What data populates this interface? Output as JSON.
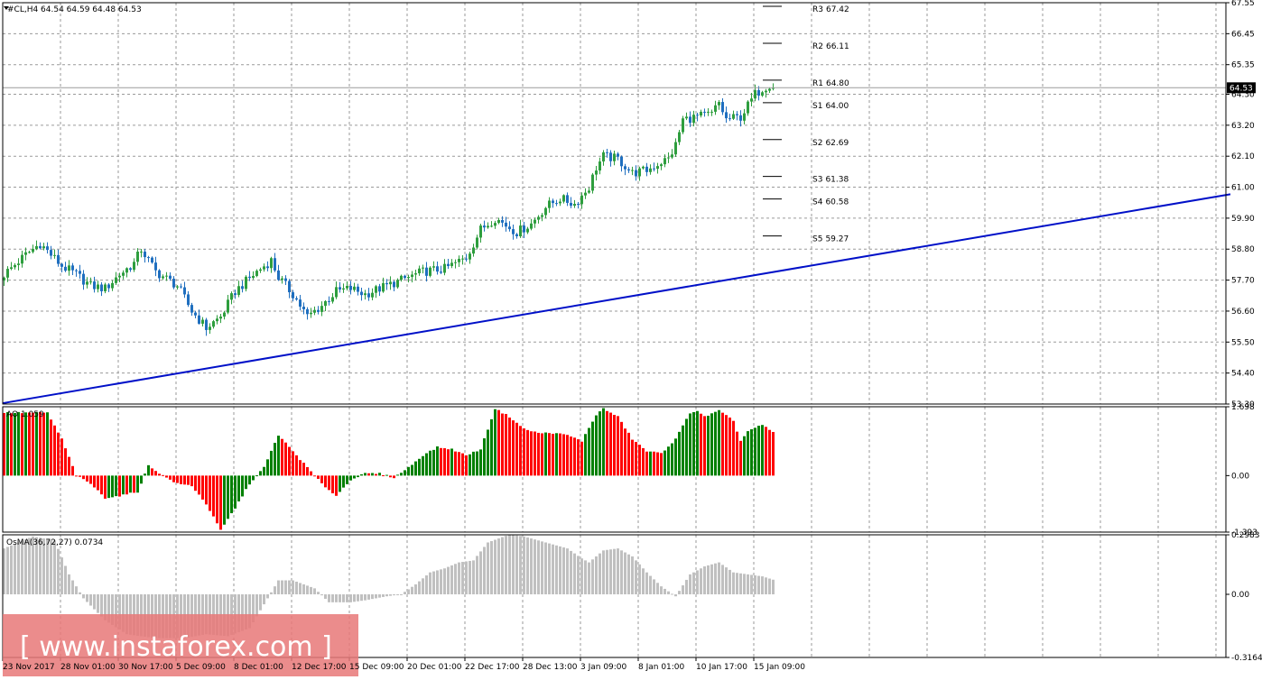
{
  "chart_data": [
    {
      "type": "candlestick",
      "title": "#CL,H4  64.54 64.59 64.48 64.53",
      "ylim": [
        53.3,
        67.55
      ],
      "y_ticks": [
        "67.55",
        "66.45",
        "65.35",
        "64.30",
        "63.20",
        "62.10",
        "61.00",
        "59.90",
        "58.80",
        "57.70",
        "56.60",
        "55.50",
        "54.40",
        "53.30"
      ],
      "current_price": "64.53",
      "up_color": "#2e9e3e",
      "down_color": "#1f6fbf",
      "x_ticks": [
        "23 Nov 2017",
        "28 Nov 01:00",
        "30 Nov 17:00",
        "5 Dec 09:00",
        "8 Dec 01:00",
        "12 Dec 17:00",
        "15 Dec 09:00",
        "20 Dec 01:00",
        "22 Dec 17:00",
        "28 Dec 13:00",
        "3 Jan 09:00",
        "8 Jan 01:00",
        "10 Jan 17:00",
        "15 Jan 09:00"
      ],
      "close_path": [
        [
          0,
          57.9
        ],
        [
          6,
          58.6
        ],
        [
          10,
          59.0
        ],
        [
          16,
          58.2
        ],
        [
          20,
          57.9
        ],
        [
          24,
          57.5
        ],
        [
          28,
          57.4
        ],
        [
          32,
          57.9
        ],
        [
          36,
          58.3
        ],
        [
          38,
          58.8
        ],
        [
          42,
          58.0
        ],
        [
          48,
          57.5
        ],
        [
          52,
          56.6
        ],
        [
          56,
          56.0
        ],
        [
          60,
          56.4
        ],
        [
          64,
          57.3
        ],
        [
          70,
          58.0
        ],
        [
          74,
          58.4
        ],
        [
          76,
          57.8
        ],
        [
          80,
          57.2
        ],
        [
          84,
          56.4
        ],
        [
          88,
          56.8
        ],
        [
          92,
          57.3
        ],
        [
          96,
          57.4
        ],
        [
          100,
          57.2
        ],
        [
          104,
          57.4
        ],
        [
          110,
          57.7
        ],
        [
          116,
          58.0
        ],
        [
          122,
          58.1
        ],
        [
          128,
          58.5
        ],
        [
          132,
          59.5
        ],
        [
          136,
          59.9
        ],
        [
          142,
          59.4
        ],
        [
          146,
          59.7
        ],
        [
          150,
          60.3
        ],
        [
          154,
          60.6
        ],
        [
          158,
          60.4
        ],
        [
          162,
          61.0
        ],
        [
          164,
          61.7
        ],
        [
          166,
          62.1
        ],
        [
          170,
          62.0
        ],
        [
          174,
          61.5
        ],
        [
          178,
          61.6
        ],
        [
          182,
          61.9
        ],
        [
          184,
          62.0
        ],
        [
          186,
          62.5
        ],
        [
          188,
          63.4
        ],
        [
          192,
          63.5
        ],
        [
          196,
          63.6
        ],
        [
          198,
          64.0
        ],
        [
          200,
          63.4
        ],
        [
          204,
          63.5
        ],
        [
          208,
          64.3
        ],
        [
          210,
          64.5
        ],
        [
          212,
          64.65
        ],
        [
          213,
          64.53
        ]
      ],
      "trendline": {
        "x": [
          0,
          340
        ],
        "y": [
          53.33,
          60.75
        ],
        "color": "#0010c8"
      },
      "pivot_levels": [
        {
          "label": "R3",
          "value": "67.42"
        },
        {
          "label": "R2",
          "value": "66.11"
        },
        {
          "label": "R1",
          "value": "64.80"
        },
        {
          "label": "S1",
          "value": "64.00"
        },
        {
          "label": "S2",
          "value": "62.69"
        },
        {
          "label": "S3",
          "value": "61.38"
        },
        {
          "label": "S4",
          "value": "60.58"
        },
        {
          "label": "S5",
          "value": "59.27"
        }
      ]
    },
    {
      "type": "bar",
      "title": "AO 1.059",
      "ylim": [
        -1.393,
        1.698
      ],
      "y_ticks": [
        "1.698",
        "0.00",
        "-1.393"
      ],
      "rising_color": "#008000",
      "falling_color": "#ff0000",
      "path": [
        [
          0,
          1.55
        ],
        [
          12,
          1.55
        ],
        [
          16,
          0.9
        ],
        [
          20,
          0.0
        ],
        [
          24,
          -0.2
        ],
        [
          28,
          -0.55
        ],
        [
          32,
          -0.5
        ],
        [
          37,
          -0.4
        ],
        [
          40,
          0.25
        ],
        [
          44,
          0.0
        ],
        [
          48,
          -0.2
        ],
        [
          52,
          -0.25
        ],
        [
          56,
          -0.7
        ],
        [
          60,
          -1.35
        ],
        [
          64,
          -0.8
        ],
        [
          68,
          -0.2
        ],
        [
          72,
          0.2
        ],
        [
          76,
          1.0
        ],
        [
          80,
          0.6
        ],
        [
          84,
          0.2
        ],
        [
          88,
          -0.2
        ],
        [
          92,
          -0.5
        ],
        [
          96,
          -0.1
        ],
        [
          100,
          0.05
        ],
        [
          104,
          0.05
        ],
        [
          108,
          -0.05
        ],
        [
          112,
          0.2
        ],
        [
          116,
          0.5
        ],
        [
          120,
          0.7
        ],
        [
          124,
          0.65
        ],
        [
          128,
          0.5
        ],
        [
          132,
          0.65
        ],
        [
          136,
          1.65
        ],
        [
          140,
          1.45
        ],
        [
          144,
          1.15
        ],
        [
          148,
          1.05
        ],
        [
          152,
          1.05
        ],
        [
          156,
          1.0
        ],
        [
          160,
          0.85
        ],
        [
          164,
          1.5
        ],
        [
          166,
          1.65
        ],
        [
          170,
          1.45
        ],
        [
          174,
          0.9
        ],
        [
          178,
          0.6
        ],
        [
          182,
          0.55
        ],
        [
          186,
          0.9
        ],
        [
          190,
          1.55
        ],
        [
          192,
          1.6
        ],
        [
          194,
          1.45
        ],
        [
          198,
          1.6
        ],
        [
          202,
          1.35
        ],
        [
          204,
          0.85
        ],
        [
          206,
          1.1
        ],
        [
          210,
          1.25
        ],
        [
          213,
          1.059
        ]
      ]
    },
    {
      "type": "bar",
      "title": "OsMA(36,72,27) 0.0734",
      "ylim": [
        -0.3164,
        0.2983
      ],
      "y_ticks": [
        "0.2983",
        "0.00",
        "-0.3164"
      ],
      "bar_color": "#c0c0c0",
      "path": [
        [
          0,
          0.23
        ],
        [
          8,
          0.29
        ],
        [
          14,
          0.27
        ],
        [
          18,
          0.1
        ],
        [
          22,
          -0.02
        ],
        [
          28,
          -0.13
        ],
        [
          34,
          -0.2
        ],
        [
          42,
          -0.22
        ],
        [
          50,
          -0.22
        ],
        [
          56,
          -0.2
        ],
        [
          62,
          -0.21
        ],
        [
          68,
          -0.17
        ],
        [
          72,
          -0.05
        ],
        [
          76,
          0.07
        ],
        [
          80,
          0.07
        ],
        [
          86,
          0.03
        ],
        [
          90,
          -0.04
        ],
        [
          96,
          -0.04
        ],
        [
          100,
          -0.03
        ],
        [
          106,
          -0.01
        ],
        [
          110,
          0.0
        ],
        [
          114,
          0.05
        ],
        [
          118,
          0.11
        ],
        [
          122,
          0.13
        ],
        [
          126,
          0.16
        ],
        [
          130,
          0.17
        ],
        [
          134,
          0.26
        ],
        [
          140,
          0.3
        ],
        [
          144,
          0.29
        ],
        [
          150,
          0.26
        ],
        [
          156,
          0.23
        ],
        [
          160,
          0.18
        ],
        [
          162,
          0.16
        ],
        [
          166,
          0.22
        ],
        [
          170,
          0.23
        ],
        [
          174,
          0.19
        ],
        [
          178,
          0.11
        ],
        [
          182,
          0.04
        ],
        [
          186,
          -0.01
        ],
        [
          190,
          0.1
        ],
        [
          194,
          0.14
        ],
        [
          198,
          0.16
        ],
        [
          202,
          0.11
        ],
        [
          206,
          0.1
        ],
        [
          210,
          0.09
        ],
        [
          213,
          0.0734
        ]
      ]
    }
  ],
  "watermark": {
    "text": "[ www.instaforex.com ]",
    "color": "#e87878"
  }
}
